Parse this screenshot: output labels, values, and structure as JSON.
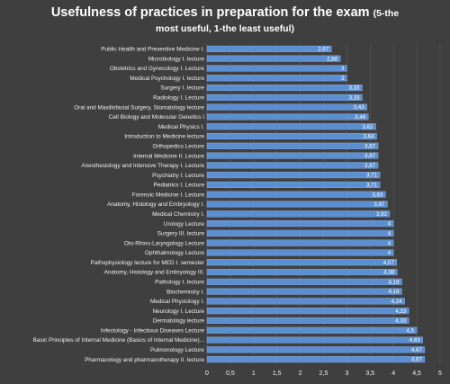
{
  "chart_data": {
    "type": "bar",
    "orientation": "horizontal",
    "title_line1_main": "Usefulness of practices in preparation for the exam",
    "title_line1_sub": "(5-the",
    "title_line2": "most useful, 1-the least useful)",
    "xlim": [
      0,
      5
    ],
    "x_ticks": [
      "0",
      "0,5",
      "1",
      "1,5",
      "2",
      "2,5",
      "3",
      "3,5",
      "4",
      "4,5",
      "5"
    ],
    "grid": true,
    "colors": {
      "background": "#3f3f3f",
      "bar": "#5b8fd1",
      "bar_edge": "#8db4e6",
      "grid": "#595959",
      "text": "#ffffff"
    },
    "categories": [
      "Public Health and Preventive Medicine I.",
      "Microbiology I. lecture",
      "Obstetrics and Gynecology I. Lecture",
      "Medical Psychology I. lecture",
      "Surgery I. lecture",
      "Radiology I. Lecture",
      "Oral and Maxillofacial Surgery, Stomatology lecture",
      "Cell Biology and Molecular Genetics I",
      "Medical Physics I.",
      "Introduction to Medicine lecture",
      "Orthopedics Lecture",
      "Internal Medicine II. Lecture",
      "Anesthesiology and Intensive Therapy I. Lecture",
      "Psychiatry I. Lecture",
      "Pediatrics I. Lecture",
      "Forensic Medicine I. Lecture",
      "Anatomy, Histology and Embryology I.",
      "Medical Chemistry I.",
      "Urology Lecture",
      "Surgery III. lecture",
      "Oto-Rhino-Laryngology Lecture",
      "Ophthalmology Lecture",
      "Pathophysiology lecture for MED I. semester",
      "Anatomy, Histology and Embryology III.",
      "Pathology I. lecture",
      "Biochemistry I.",
      "Medical Physiology I.",
      "Neurology I. Lecture",
      "Dermatology lecture",
      "Infectology - Infectious Diseases Lecture",
      "Basic Principles of Internal Medicine (Basics of Internal Medicine)...",
      "Pulmonology Lecture",
      "Pharmacology and pharmacotherapy II. lecture"
    ],
    "values": [
      2.67,
      2.86,
      3,
      3,
      3.33,
      3.33,
      3.43,
      3.46,
      3.62,
      3.64,
      3.67,
      3.67,
      3.67,
      3.71,
      3.71,
      3.83,
      3.87,
      3.92,
      4,
      4,
      4,
      4,
      4.07,
      4.08,
      4.18,
      4.18,
      4.24,
      4.33,
      4.33,
      4.5,
      4.63,
      4.67,
      4.67
    ],
    "value_labels": [
      "2,67",
      "2,86",
      "3",
      "3",
      "3,33",
      "3,33",
      "3,43",
      "3,46",
      "3,62",
      "3,64",
      "3,67",
      "3,67",
      "3,67",
      "3,71",
      "3,71",
      "3,83",
      "3,87",
      "3,92",
      "4",
      "4",
      "4",
      "4",
      "4,07",
      "4,08",
      "4,18",
      "4,18",
      "4,24",
      "4,33",
      "4,33",
      "4,5",
      "4,63",
      "4,67",
      "4,67"
    ]
  }
}
